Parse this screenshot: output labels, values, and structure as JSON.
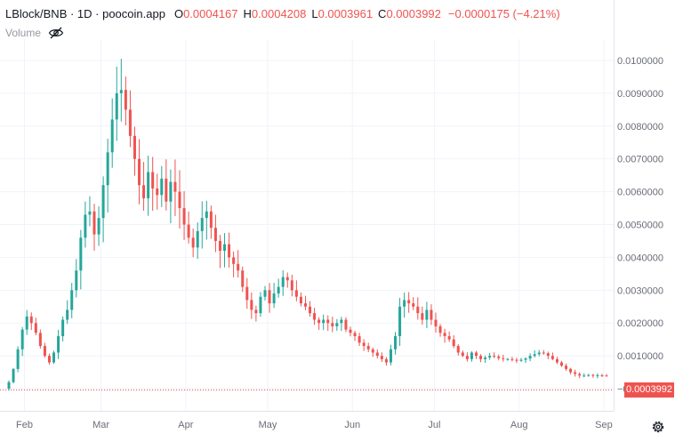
{
  "legend": {
    "symbol": "LBlock/BNB · 1D · poocoin.app",
    "open_label": "O",
    "open": "0.0004167",
    "high_label": "H",
    "high": "0.0004208",
    "low_label": "L",
    "low": "0.0003961",
    "close_label": "C",
    "close": "0.0003992",
    "change": "−0.0000175 (−4.21%)"
  },
  "volume": {
    "label": "Volume",
    "icon": "eye-off-icon"
  },
  "last_price": "0.0003992",
  "colors": {
    "up": "#26a69a",
    "down": "#ef5350",
    "grid": "#f0f3fa",
    "axis_text": "#6a6d78",
    "price_line": "#ef5350"
  },
  "chart_data": {
    "type": "candlestick",
    "y_axis": {
      "min": -0.0005,
      "max": 0.0105,
      "ticks": [
        "0.0100000",
        "0.0090000",
        "0.0080000",
        "0.0070000",
        "0.0060000",
        "0.0050000",
        "0.0040000",
        "0.0030000",
        "0.0020000",
        "0.0010000",
        "−0.0000000"
      ],
      "tick_values": [
        0.01,
        0.009,
        0.008,
        0.007,
        0.006,
        0.005,
        0.004,
        0.003,
        0.002,
        0.001,
        0.0
      ]
    },
    "x_axis": {
      "start": "2021-01-25",
      "end": "2021-09-02",
      "tick_labels": [
        "Feb",
        "Mar",
        "Apr",
        "May",
        "Jun",
        "Jul",
        "Aug",
        "Sep"
      ],
      "tick_dates": [
        "2021-02-01",
        "2021-03-01",
        "2021-04-01",
        "2021-05-01",
        "2021-06-01",
        "2021-07-01",
        "2021-08-01",
        "2021-09-01"
      ]
    },
    "grid": true,
    "closes": [
      0.0002,
      0.0006,
      0.0012,
      0.0018,
      0.0022,
      0.002,
      0.0017,
      0.0013,
      0.001,
      0.0008,
      0.0011,
      0.0016,
      0.0021,
      0.0024,
      0.003,
      0.0036,
      0.0046,
      0.0053,
      0.0054,
      0.0047,
      0.0052,
      0.0062,
      0.0072,
      0.0082,
      0.009,
      0.0091,
      0.0085,
      0.0077,
      0.007,
      0.0062,
      0.0058,
      0.0066,
      0.0061,
      0.0059,
      0.0064,
      0.0057,
      0.0063,
      0.006,
      0.0055,
      0.005,
      0.0046,
      0.0043,
      0.0048,
      0.0052,
      0.0054,
      0.0049,
      0.0045,
      0.0042,
      0.0044,
      0.004,
      0.0038,
      0.0036,
      0.0031,
      0.0027,
      0.0024,
      0.0023,
      0.0028,
      0.003,
      0.0026,
      0.0029,
      0.0031,
      0.0034,
      0.0033,
      0.003,
      0.0028,
      0.0026,
      0.0025,
      0.0023,
      0.0021,
      0.002,
      0.0021,
      0.002,
      0.0019,
      0.002,
      0.0021,
      0.0018,
      0.0017,
      0.0016,
      0.0014,
      0.0013,
      0.0012,
      0.0011,
      0.001,
      0.0009,
      0.0008,
      0.0012,
      0.0016,
      0.0025,
      0.0027,
      0.0026,
      0.0025,
      0.0023,
      0.0021,
      0.0024,
      0.0021,
      0.0019,
      0.0017,
      0.0016,
      0.0015,
      0.0013,
      0.0011,
      0.001,
      0.0009,
      0.0011,
      0.001,
      0.0009,
      0.00095,
      0.001,
      0.00098,
      0.00093,
      0.0009,
      0.0009,
      0.00088,
      0.00085,
      0.00088,
      0.00092,
      0.001,
      0.00105,
      0.0011,
      0.00108,
      0.001,
      0.0009,
      0.0008,
      0.0007,
      0.0006,
      0.0005,
      0.00045,
      0.0004,
      0.0004,
      0.00042,
      0.0004,
      0.00041,
      0.0004,
      0.0003992
    ]
  }
}
